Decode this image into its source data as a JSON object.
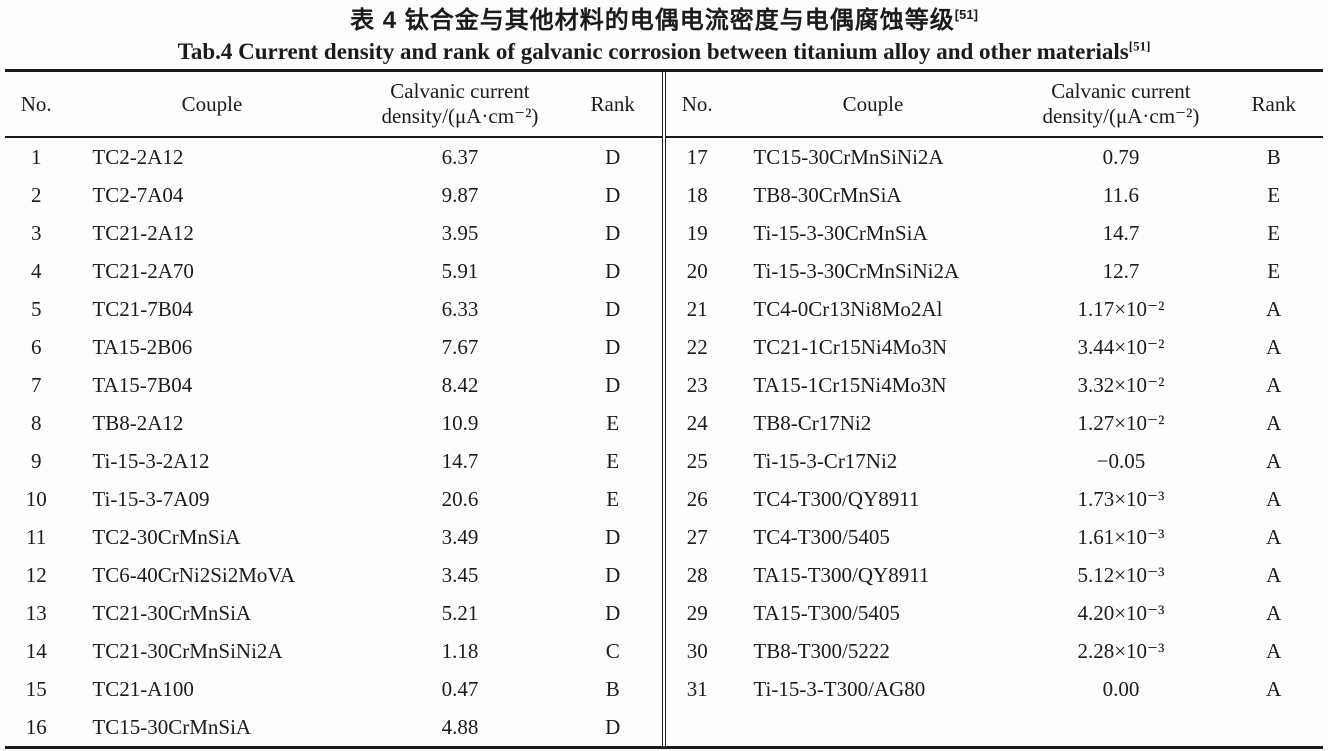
{
  "titles": {
    "chinese": "表 4  钛合金与其他材料的电偶电流密度与电偶腐蚀等级",
    "chinese_ref": "[51]",
    "english": "Tab.4 Current density and rank of galvanic corrosion between titanium alloy and other materials",
    "english_ref": "[51]"
  },
  "table": {
    "headers": {
      "no": "No.",
      "couple": "Couple",
      "density_line1": "Calvanic current",
      "density_line2": "density/(μA·cm⁻²)",
      "rank": "Rank"
    },
    "left_rows": [
      {
        "no": "1",
        "couple": "TC2-2A12",
        "density": "6.37",
        "rank": "D"
      },
      {
        "no": "2",
        "couple": "TC2-7A04",
        "density": "9.87",
        "rank": "D"
      },
      {
        "no": "3",
        "couple": "TC21-2A12",
        "density": "3.95",
        "rank": "D"
      },
      {
        "no": "4",
        "couple": "TC21-2A70",
        "density": "5.91",
        "rank": "D"
      },
      {
        "no": "5",
        "couple": "TC21-7B04",
        "density": "6.33",
        "rank": "D"
      },
      {
        "no": "6",
        "couple": "TA15-2B06",
        "density": "7.67",
        "rank": "D"
      },
      {
        "no": "7",
        "couple": "TA15-7B04",
        "density": "8.42",
        "rank": "D"
      },
      {
        "no": "8",
        "couple": "TB8-2A12",
        "density": "10.9",
        "rank": "E"
      },
      {
        "no": "9",
        "couple": "Ti-15-3-2A12",
        "density": "14.7",
        "rank": "E"
      },
      {
        "no": "10",
        "couple": "Ti-15-3-7A09",
        "density": "20.6",
        "rank": "E"
      },
      {
        "no": "11",
        "couple": "TC2-30CrMnSiA",
        "density": "3.49",
        "rank": "D"
      },
      {
        "no": "12",
        "couple": "TC6-40CrNi2Si2MoVA",
        "density": "3.45",
        "rank": "D"
      },
      {
        "no": "13",
        "couple": "TC21-30CrMnSiA",
        "density": "5.21",
        "rank": "D"
      },
      {
        "no": "14",
        "couple": "TC21-30CrMnSiNi2A",
        "density": "1.18",
        "rank": "C"
      },
      {
        "no": "15",
        "couple": "TC21-A100",
        "density": "0.47",
        "rank": "B"
      },
      {
        "no": "16",
        "couple": "TC15-30CrMnSiA",
        "density": "4.88",
        "rank": "D"
      }
    ],
    "right_rows": [
      {
        "no": "17",
        "couple": "TC15-30CrMnSiNi2A",
        "density": "0.79",
        "rank": "B"
      },
      {
        "no": "18",
        "couple": "TB8-30CrMnSiA",
        "density": "11.6",
        "rank": "E"
      },
      {
        "no": "19",
        "couple": "Ti-15-3-30CrMnSiA",
        "density": "14.7",
        "rank": "E"
      },
      {
        "no": "20",
        "couple": "Ti-15-3-30CrMnSiNi2A",
        "density": "12.7",
        "rank": "E"
      },
      {
        "no": "21",
        "couple": "TC4-0Cr13Ni8Mo2Al",
        "density": "1.17×10⁻²",
        "rank": "A"
      },
      {
        "no": "22",
        "couple": "TC21-1Cr15Ni4Mo3N",
        "density": "3.44×10⁻²",
        "rank": "A"
      },
      {
        "no": "23",
        "couple": "TA15-1Cr15Ni4Mo3N",
        "density": "3.32×10⁻²",
        "rank": "A"
      },
      {
        "no": "24",
        "couple": "TB8-Cr17Ni2",
        "density": "1.27×10⁻²",
        "rank": "A"
      },
      {
        "no": "25",
        "couple": "Ti-15-3-Cr17Ni2",
        "density": "−0.05",
        "rank": "A"
      },
      {
        "no": "26",
        "couple": "TC4-T300/QY8911",
        "density": "1.73×10⁻³",
        "rank": "A"
      },
      {
        "no": "27",
        "couple": "TC4-T300/5405",
        "density": "1.61×10⁻³",
        "rank": "A"
      },
      {
        "no": "28",
        "couple": "TA15-T300/QY8911",
        "density": "5.12×10⁻³",
        "rank": "A"
      },
      {
        "no": "29",
        "couple": "TA15-T300/5405",
        "density": "4.20×10⁻³",
        "rank": "A"
      },
      {
        "no": "30",
        "couple": "TB8-T300/5222",
        "density": "2.28×10⁻³",
        "rank": "A"
      },
      {
        "no": "31",
        "couple": "Ti-15-3-T300/AG80",
        "density": "0.00",
        "rank": "A"
      }
    ]
  },
  "colors": {
    "text": "#1b1b1b",
    "background": "#fdfdfd",
    "rule": "#1b1b1b"
  }
}
